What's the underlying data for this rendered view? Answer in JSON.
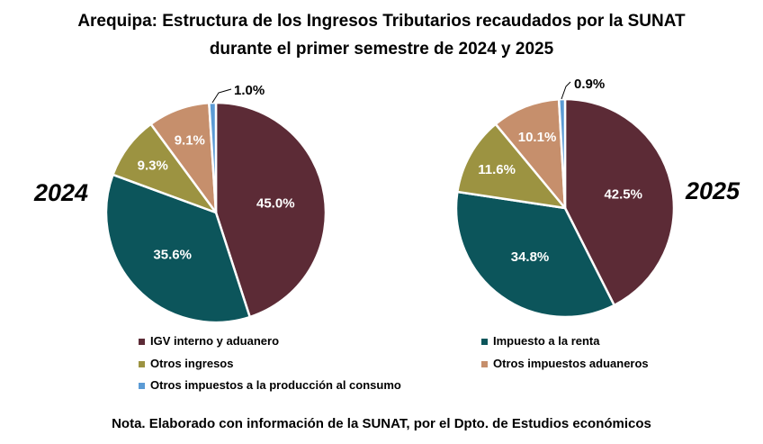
{
  "title": {
    "line1": "Arequipa: Estructura de los Ingresos Tributarios recaudados por la SUNAT",
    "line2": "durante el primer semestre de 2024 y 2025"
  },
  "note": "Nota. Elaborado con información de la SUNAT, por el Dpto. de Estudios económicos",
  "chart_data": [
    {
      "type": "pie",
      "title": "2024",
      "categories": [
        "IGV interno y aduanero",
        "Impuesto a la renta",
        "Otros ingresos",
        "Otros impuestos aduaneros",
        "Otros impuestos a la producción al consumo"
      ],
      "values": [
        45.0,
        35.6,
        9.3,
        9.1,
        1.0
      ],
      "labels": [
        "45.0%",
        "35.6%",
        "9.3%",
        "9.1%",
        "1.0%"
      ],
      "colors": [
        "#5c2b36",
        "#0c555b",
        "#9c9341",
        "#c68f6c",
        "#5b9bd5"
      ],
      "unit": "%"
    },
    {
      "type": "pie",
      "title": "2025",
      "categories": [
        "IGV interno y aduanero",
        "Impuesto a la renta",
        "Otros ingresos",
        "Otros impuestos aduaneros",
        "Otros impuestos a la producción al consumo"
      ],
      "values": [
        42.5,
        34.8,
        11.6,
        10.1,
        0.9
      ],
      "labels": [
        "42.5%",
        "34.8%",
        "11.6%",
        "10.1%",
        "0.9%"
      ],
      "colors": [
        "#5c2b36",
        "#0c555b",
        "#9c9341",
        "#c68f6c",
        "#5b9bd5"
      ],
      "unit": "%"
    }
  ],
  "legend": {
    "items": [
      {
        "label": "IGV interno y aduanero",
        "color": "#5c2b36"
      },
      {
        "label": "Impuesto a la renta",
        "color": "#0c555b"
      },
      {
        "label": "Otros ingresos",
        "color": "#9c9341"
      },
      {
        "label": "Otros impuestos aduaneros",
        "color": "#c68f6c"
      },
      {
        "label": "Otros impuestos a la producción al consumo",
        "color": "#5b9bd5"
      }
    ]
  }
}
